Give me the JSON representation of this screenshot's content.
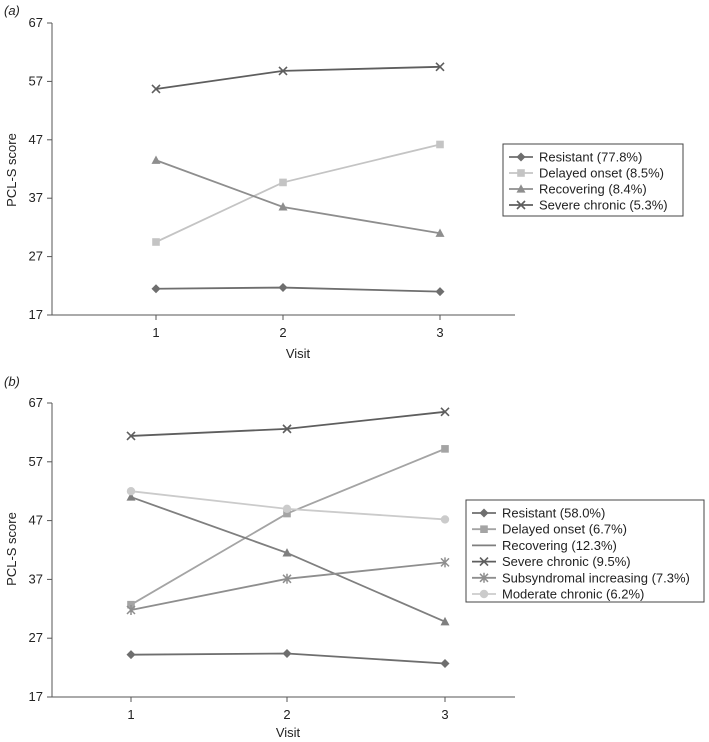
{
  "chart_data": [
    {
      "type": "line",
      "panel_label": "(a)",
      "xlabel": "Visit",
      "ylabel": "PCL-S score",
      "x": [
        1,
        2,
        3
      ],
      "xticks": [
        "1",
        "2",
        "3"
      ],
      "yticks": [
        "17",
        "27",
        "37",
        "47",
        "57",
        "67"
      ],
      "ylim": [
        17,
        67
      ],
      "grid": false,
      "legend": "right",
      "series": [
        {
          "name": "Resistant (77.8%)",
          "values": [
            21.5,
            21.7,
            21.0
          ],
          "color": "#6e6e6e",
          "marker": "diamond"
        },
        {
          "name": "Delayed onset (8.5%)",
          "values": [
            29.5,
            39.7,
            46.2
          ],
          "color": "#c4c4c4",
          "marker": "square"
        },
        {
          "name": "Recovering (8.4%)",
          "values": [
            43.5,
            35.5,
            31.0
          ],
          "color": "#8e8e8e",
          "marker": "triangle"
        },
        {
          "name": "Severe chronic (5.3%)",
          "values": [
            55.7,
            58.8,
            59.5
          ],
          "color": "#5e5e5e",
          "marker": "x"
        }
      ]
    },
    {
      "type": "line",
      "panel_label": "(b)",
      "xlabel": "Visit",
      "ylabel": "PCL-S score",
      "x": [
        1,
        2,
        3
      ],
      "xticks": [
        "1",
        "2",
        "3"
      ],
      "yticks": [
        "17",
        "27",
        "37",
        "47",
        "57",
        "67"
      ],
      "ylim": [
        17,
        67
      ],
      "grid": false,
      "legend": "right",
      "series": [
        {
          "name": "Resistant (58.0%)",
          "values": [
            24.2,
            24.4,
            22.7
          ],
          "color": "#6e6e6e",
          "marker": "diamond"
        },
        {
          "name": "Delayed onset (6.7%)",
          "values": [
            32.7,
            48.2,
            59.2
          ],
          "color": "#a4a4a4",
          "marker": "square"
        },
        {
          "name": "Recovering (12.3%)",
          "values": [
            51.0,
            41.5,
            29.8
          ],
          "color": "#7f7f7f",
          "marker": "triangle"
        },
        {
          "name": "Severe chronic (9.5%)",
          "values": [
            61.4,
            62.6,
            65.5
          ],
          "color": "#5e5e5e",
          "marker": "x"
        },
        {
          "name": "Subsyndromal increasing (7.3%)",
          "values": [
            31.8,
            37.1,
            39.9
          ],
          "color": "#8e8e8e",
          "marker": "star"
        },
        {
          "name": "Moderate chronic (6.2%)",
          "values": [
            52.0,
            49.0,
            47.2
          ],
          "color": "#cbcbcb",
          "marker": "circle"
        }
      ]
    }
  ]
}
